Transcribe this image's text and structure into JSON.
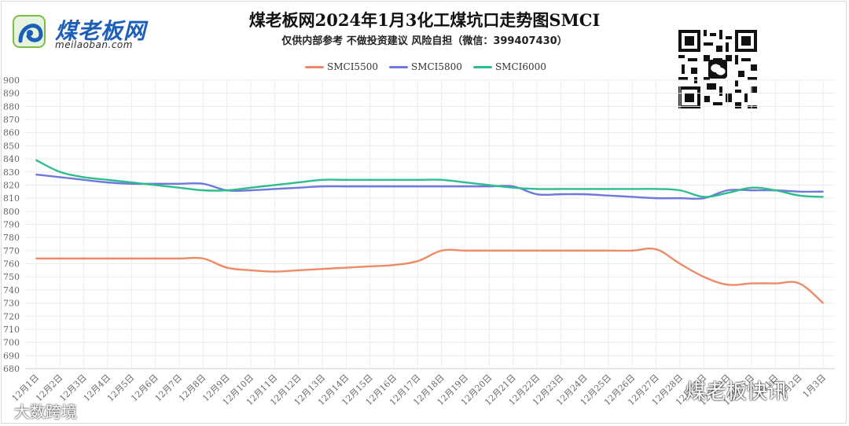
{
  "header": {
    "logo_text": "煤老板网",
    "logo_url": "meilaoban.com",
    "title": "煤老板网2024年1月3化工煤坑口走势图SMCI",
    "subtitle": "仅供内部参考 不做投资建议 风险自担（微信：399407430）"
  },
  "watermarks": {
    "right": "煤老板快讯",
    "left": "大数跨境"
  },
  "colors": {
    "SMCI5500": "#ee8a66",
    "SMCI5800": "#6f78dc",
    "SMCI6000": "#2ebd8c",
    "grid": "#ececec",
    "axis_text": "#666666"
  },
  "chart_data": {
    "type": "line",
    "title": "煤老板网2024年1月3化工煤坑口走势图SMCI",
    "xlabel": "",
    "ylabel": "",
    "ylim": [
      680,
      900
    ],
    "ytick_step": 10,
    "grid": true,
    "legend_position": "top-center",
    "categories": [
      "12月1日",
      "12月2日",
      "12月3日",
      "12月4日",
      "12月5日",
      "12月6日",
      "12月7日",
      "12月8日",
      "12月9日",
      "12月10日",
      "12月11日",
      "12月12日",
      "12月13日",
      "12月14日",
      "12月15日",
      "12月16日",
      "12月17日",
      "12月18日",
      "12月19日",
      "12月20日",
      "12月21日",
      "12月22日",
      "12月23日",
      "12月24日",
      "12月25日",
      "12月26日",
      "12月27日",
      "12月28日",
      "12月29日",
      "12月30日",
      "12月31日",
      "1月1日",
      "1月2日",
      "1月3日"
    ],
    "series": [
      {
        "name": "SMCI5500",
        "values": [
          764,
          764,
          764,
          764,
          764,
          764,
          764,
          764,
          757,
          755,
          754,
          755,
          756,
          757,
          758,
          759,
          762,
          770,
          770,
          770,
          770,
          770,
          770,
          770,
          770,
          770,
          771,
          760,
          750,
          744,
          745,
          745,
          745,
          730
        ]
      },
      {
        "name": "SMCI5800",
        "values": [
          828,
          826,
          824,
          822,
          821,
          821,
          821,
          821,
          816,
          816,
          817,
          818,
          819,
          819,
          819,
          819,
          819,
          819,
          819,
          819,
          819,
          813,
          813,
          813,
          812,
          811,
          810,
          810,
          810,
          816,
          816,
          816,
          815,
          815
        ]
      },
      {
        "name": "SMCI6000",
        "values": [
          839,
          830,
          826,
          824,
          822,
          820,
          818,
          816,
          816,
          818,
          820,
          822,
          824,
          824,
          824,
          824,
          824,
          824,
          822,
          820,
          818,
          817,
          817,
          817,
          817,
          817,
          817,
          816,
          811,
          814,
          818,
          816,
          812,
          811
        ]
      }
    ]
  }
}
